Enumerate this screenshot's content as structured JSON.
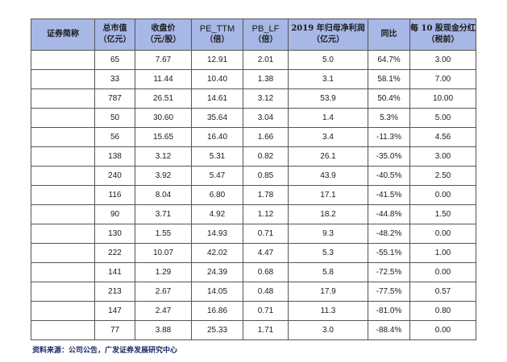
{
  "table": {
    "headers": [
      {
        "line1": "证券简称",
        "line2": ""
      },
      {
        "line1": "总市值",
        "line2": "（亿元）"
      },
      {
        "line1": "收盘价",
        "line2": "（元/股）"
      },
      {
        "line1": "PE_TTM",
        "line2": "（倍）"
      },
      {
        "line1": "PB_LF",
        "line2": "（倍）"
      },
      {
        "line1": "2019 年归母净利润",
        "line2": "（亿元）"
      },
      {
        "line1": "同比",
        "line2": ""
      },
      {
        "line1": "每 10 股现金分红",
        "line2": "（税前）"
      }
    ],
    "rows": [
      [
        "",
        "65",
        "7.67",
        "12.91",
        "2.01",
        "5.0",
        "64.7%",
        "3.00"
      ],
      [
        "",
        "33",
        "11.44",
        "10.40",
        "1.38",
        "3.1",
        "58.1%",
        "7.00"
      ],
      [
        "",
        "787",
        "26.51",
        "14.61",
        "3.12",
        "53.9",
        "50.4%",
        "10.00"
      ],
      [
        "",
        "50",
        "30.60",
        "35.64",
        "3.04",
        "1.4",
        "5.3%",
        "5.00"
      ],
      [
        "",
        "56",
        "15.65",
        "16.40",
        "1.66",
        "3.4",
        "-11.3%",
        "4.56"
      ],
      [
        "",
        "138",
        "3.12",
        "5.31",
        "0.82",
        "26.1",
        "-35.0%",
        "3.00"
      ],
      [
        "",
        "240",
        "3.92",
        "5.47",
        "0.85",
        "43.9",
        "-40.5%",
        "2.50"
      ],
      [
        "",
        "116",
        "8.04",
        "6.80",
        "1.78",
        "17.1",
        "-41.5%",
        "0.00"
      ],
      [
        "",
        "90",
        "3.71",
        "4.92",
        "1.12",
        "18.2",
        "-44.8%",
        "1.50"
      ],
      [
        "",
        "130",
        "1.55",
        "14.93",
        "0.71",
        "9.3",
        "-48.2%",
        "0.00"
      ],
      [
        "",
        "222",
        "10.07",
        "42.02",
        "4.47",
        "5.3",
        "-55.1%",
        "1.00"
      ],
      [
        "",
        "141",
        "1.29",
        "24.39",
        "0.68",
        "5.8",
        "-72.5%",
        "0.00"
      ],
      [
        "",
        "213",
        "2.67",
        "14.05",
        "0.48",
        "17.9",
        "-77.5%",
        "0.57"
      ],
      [
        "",
        "147",
        "2.47",
        "16.86",
        "0.71",
        "11.3",
        "-81.0%",
        "0.80"
      ],
      [
        "",
        "77",
        "3.88",
        "25.33",
        "1.71",
        "3.0",
        "-88.4%",
        "0.00"
      ]
    ]
  },
  "source_note": "资料来源：公司公告，广发证券发展研究中心",
  "colors": {
    "header_bg": "#a7b7e6",
    "border": "#555555"
  }
}
